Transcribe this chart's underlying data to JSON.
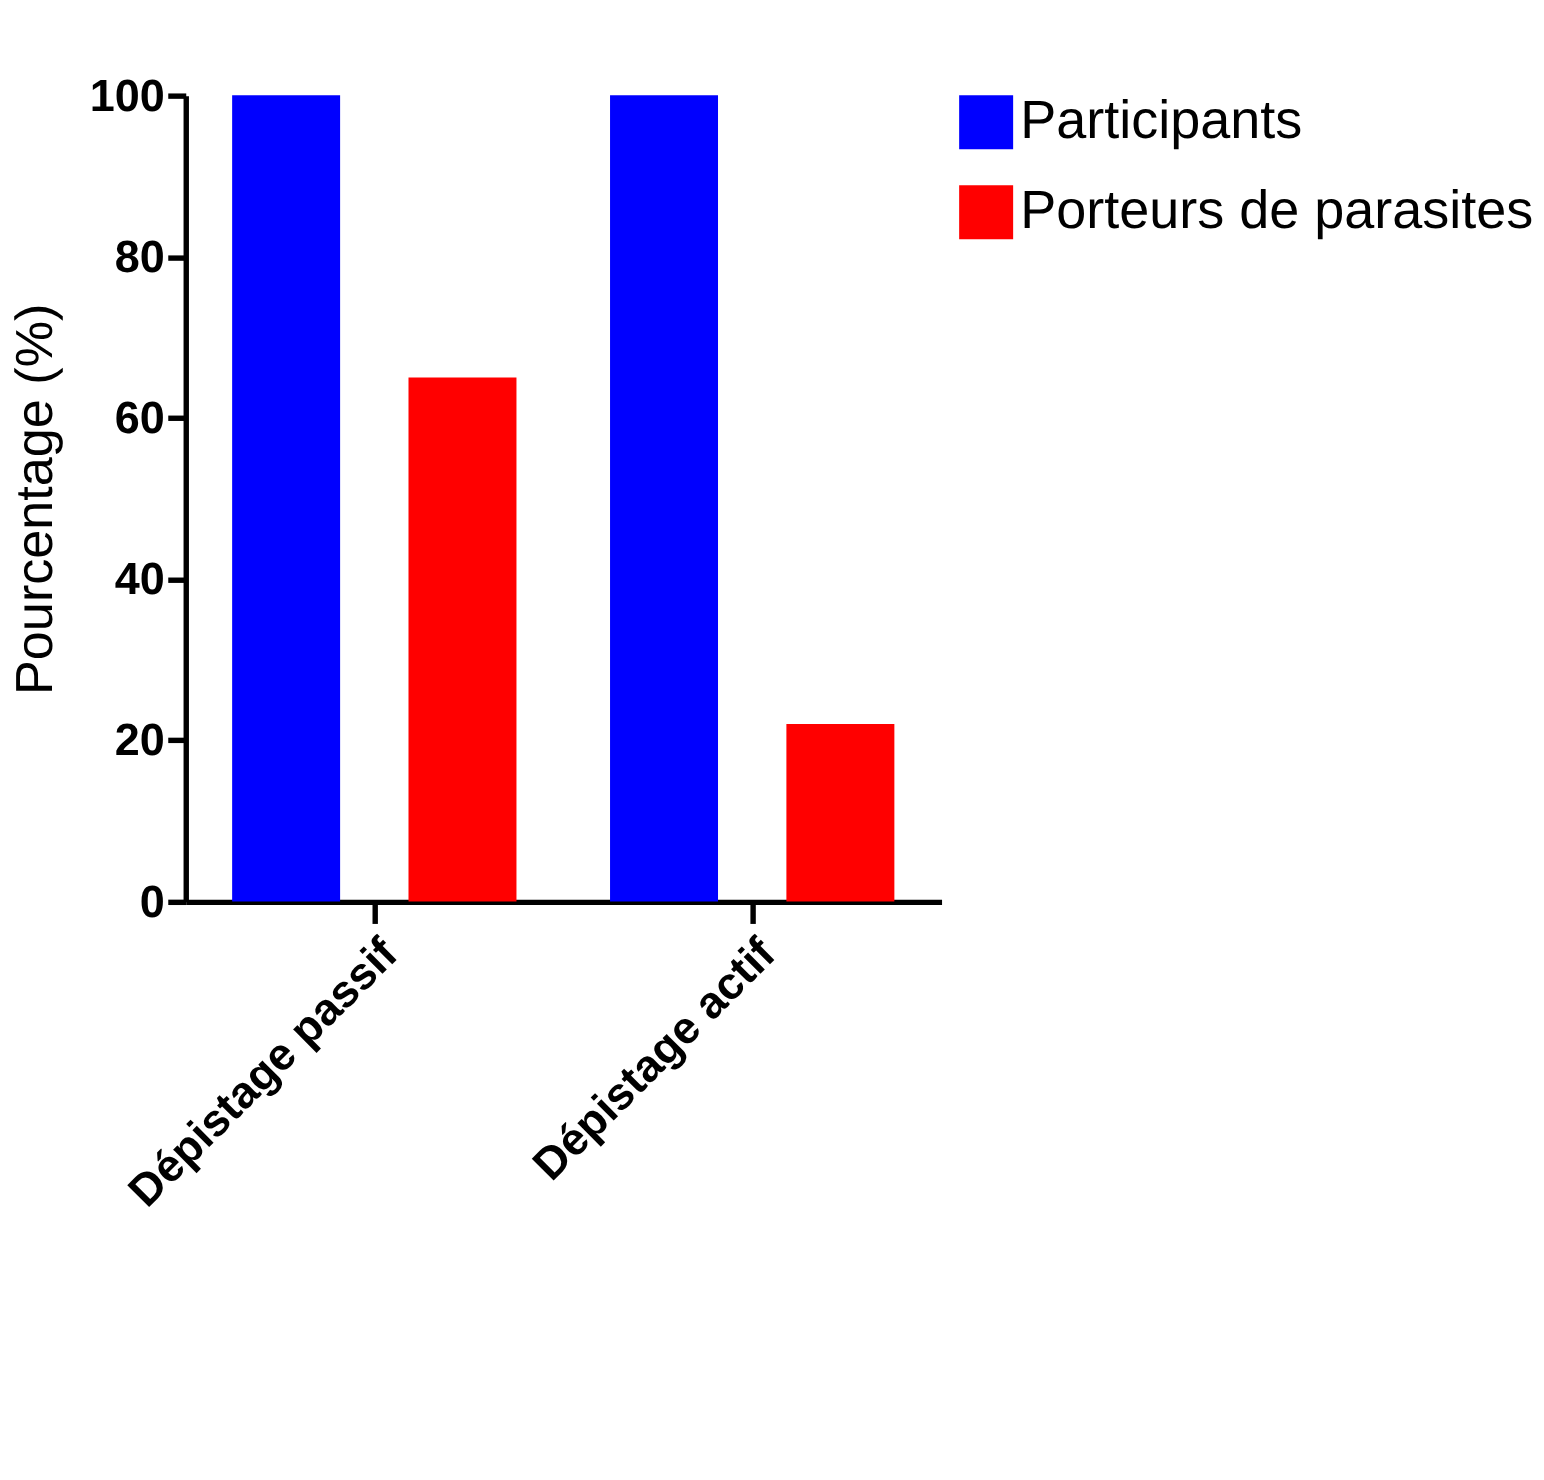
{
  "chart_data": {
    "type": "bar",
    "ylabel": "Pourcentage (%)",
    "categories": [
      "Dépistage passif",
      "Dépistage actif"
    ],
    "series": [
      {
        "name": "Participants",
        "color": "#0000ff",
        "values": [
          100,
          100
        ]
      },
      {
        "name": "Porteurs de parasites",
        "color": "#ff0000",
        "values": [
          65,
          22
        ]
      }
    ],
    "ylim": [
      0,
      100
    ],
    "yticks": [
      0,
      20,
      40,
      60,
      80,
      100
    ],
    "grid": false,
    "legend": "top right"
  }
}
